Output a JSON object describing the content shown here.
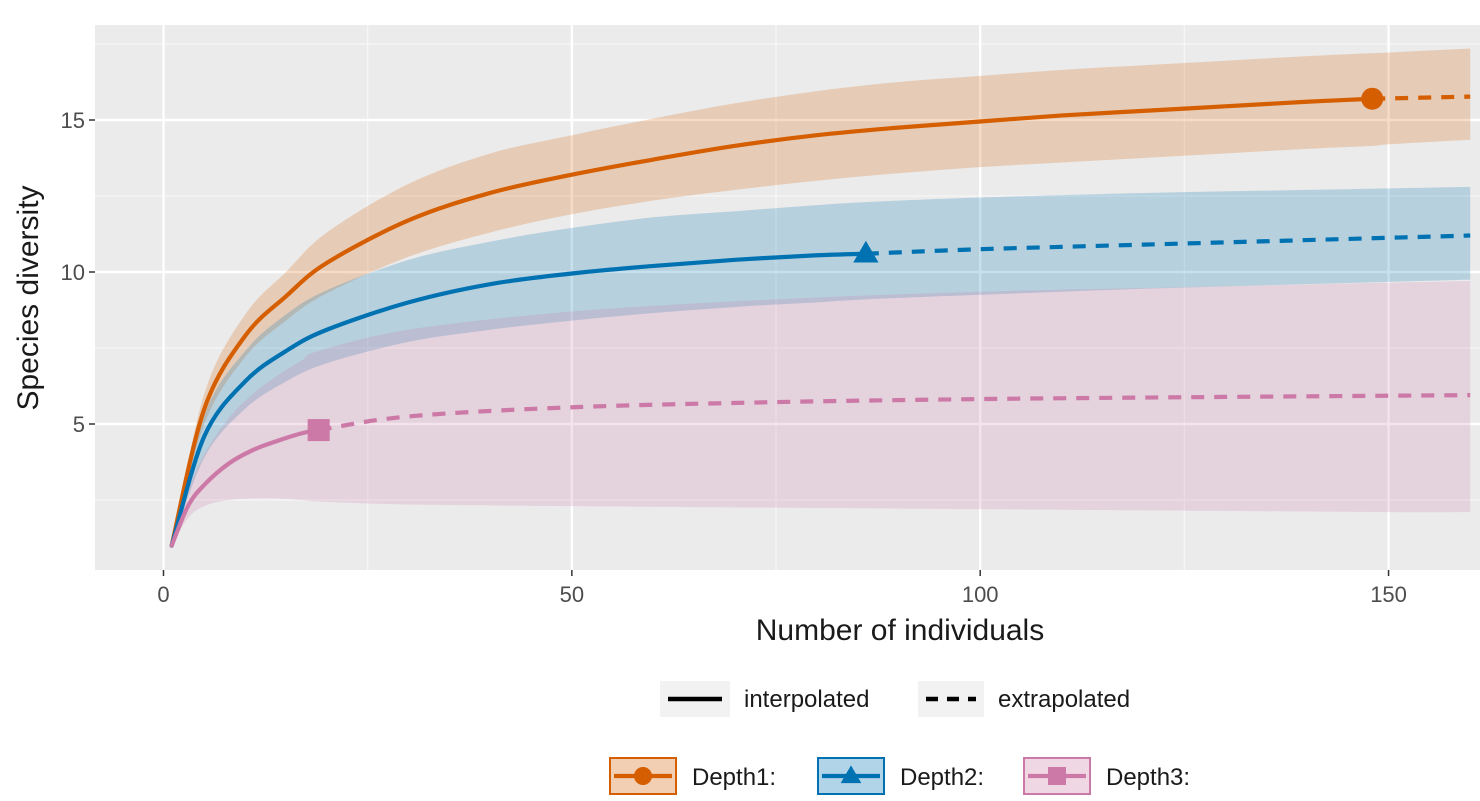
{
  "chart_data": {
    "type": "line",
    "xlabel": "Number of individuals",
    "ylabel": "Species diversity",
    "xlim": [
      -14,
      160
    ],
    "ylim": [
      0.2,
      18.2
    ],
    "x_ticks": [
      0,
      50,
      100,
      150
    ],
    "y_ticks": [
      5,
      10,
      15
    ],
    "x_tick_labels": [
      "0",
      "50",
      "100",
      "150"
    ],
    "y_tick_labels": [
      "5",
      "10",
      "15"
    ],
    "grid": true,
    "legend_position": "bottom",
    "linetype_legend": [
      {
        "label": "interpolated",
        "dash": "solid"
      },
      {
        "label": "extrapolated",
        "dash": "dashed"
      }
    ],
    "series": [
      {
        "name": "Depth1:",
        "color": "#D55E00",
        "marker": "circle",
        "observed": {
          "x": 148,
          "y": 15.7
        },
        "x": [
          1,
          5,
          10,
          15,
          20,
          30,
          40,
          50,
          60,
          70,
          80,
          90,
          100,
          110,
          120,
          130,
          140,
          148,
          150,
          160
        ],
        "y": [
          1.0,
          5.5,
          7.9,
          9.2,
          10.3,
          11.7,
          12.6,
          13.2,
          13.7,
          14.15,
          14.5,
          14.75,
          14.95,
          15.15,
          15.3,
          15.45,
          15.6,
          15.7,
          15.71,
          15.77
        ],
        "lower": [
          1.0,
          5.0,
          7.2,
          8.4,
          9.3,
          10.5,
          11.3,
          11.9,
          12.35,
          12.7,
          13.0,
          13.25,
          13.45,
          13.6,
          13.75,
          13.9,
          14.05,
          14.15,
          14.2,
          14.35
        ],
        "upper": [
          1.0,
          6.0,
          8.6,
          10.0,
          11.3,
          12.9,
          13.9,
          14.5,
          15.05,
          15.55,
          15.95,
          16.25,
          16.45,
          16.65,
          16.8,
          16.95,
          17.1,
          17.2,
          17.22,
          17.35
        ]
      },
      {
        "name": "Depth2:",
        "color": "#0072B2",
        "marker": "triangle",
        "observed": {
          "x": 86,
          "y": 10.6
        },
        "x": [
          1,
          5,
          10,
          15,
          20,
          30,
          40,
          50,
          60,
          70,
          80,
          86,
          100,
          120,
          140,
          160
        ],
        "y": [
          1.0,
          4.6,
          6.4,
          7.4,
          8.1,
          9.0,
          9.6,
          9.95,
          10.2,
          10.4,
          10.55,
          10.6,
          10.75,
          10.9,
          11.05,
          11.2
        ],
        "lower": [
          1.0,
          3.9,
          5.5,
          6.4,
          7.0,
          7.7,
          8.1,
          8.4,
          8.65,
          8.85,
          9.0,
          9.1,
          9.25,
          9.45,
          9.6,
          9.75
        ],
        "upper": [
          1.0,
          5.3,
          7.4,
          8.6,
          9.4,
          10.4,
          11.0,
          11.45,
          11.8,
          12.0,
          12.2,
          12.3,
          12.45,
          12.6,
          12.7,
          12.8
        ]
      },
      {
        "name": "Depth3:",
        "color": "#CC79A7",
        "marker": "square",
        "observed": {
          "x": 19,
          "y": 4.8
        },
        "x": [
          1,
          3,
          5,
          8,
          11,
          14,
          17,
          19,
          30,
          50,
          75,
          100,
          125,
          150,
          160
        ],
        "y": [
          1.0,
          2.3,
          3.0,
          3.7,
          4.15,
          4.45,
          4.7,
          4.8,
          5.25,
          5.55,
          5.72,
          5.82,
          5.88,
          5.93,
          5.95
        ],
        "lower": [
          1.0,
          1.9,
          2.3,
          2.5,
          2.55,
          2.55,
          2.5,
          2.45,
          2.35,
          2.3,
          2.25,
          2.2,
          2.15,
          2.1,
          2.1
        ],
        "upper": [
          1.0,
          2.8,
          4.0,
          5.2,
          6.0,
          6.6,
          7.1,
          7.4,
          8.1,
          8.7,
          9.1,
          9.35,
          9.5,
          9.65,
          9.7
        ]
      }
    ]
  }
}
